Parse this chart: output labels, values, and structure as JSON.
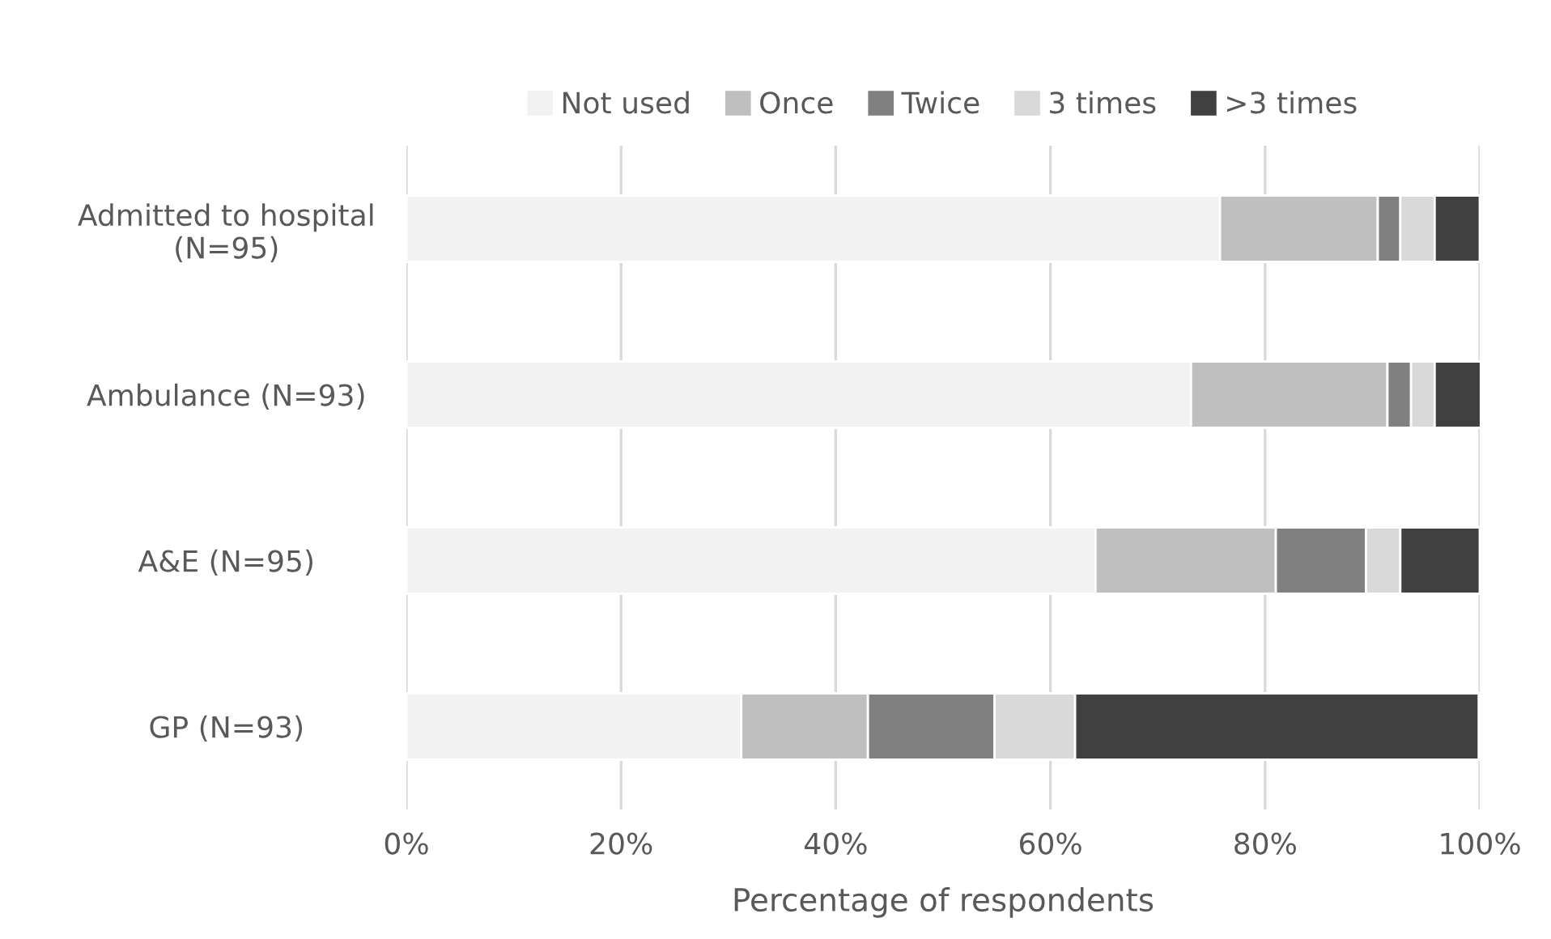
{
  "chart_data": {
    "type": "bar",
    "orientation": "horizontal",
    "stacked": true,
    "categories": [
      "Admitted to hospital\n(N=95)",
      "Ambulance (N=93)",
      "A&E (N=95)",
      "GP (N=93)"
    ],
    "series": [
      {
        "name": "Not used",
        "color": "#f2f2f2",
        "values": [
          75.8,
          73.1,
          64.2,
          31.2
        ]
      },
      {
        "name": "Once",
        "color": "#bfbfbf",
        "values": [
          14.7,
          18.3,
          16.8,
          11.8
        ]
      },
      {
        "name": "Twice",
        "color": "#808080",
        "values": [
          2.1,
          2.2,
          8.4,
          11.8
        ]
      },
      {
        "name": "3 times",
        "color": "#d9d9d9",
        "values": [
          3.2,
          2.2,
          3.2,
          7.5
        ]
      },
      {
        "name": ">3 times",
        "color": "#404040",
        "values": [
          4.2,
          4.3,
          7.4,
          37.6
        ]
      }
    ],
    "xlabel": "Percentage of respondents",
    "xlim": [
      0,
      100
    ],
    "xticks": [
      {
        "value": 0,
        "label": "0%"
      },
      {
        "value": 20,
        "label": "20%"
      },
      {
        "value": 40,
        "label": "40%"
      },
      {
        "value": 60,
        "label": "60%"
      },
      {
        "value": 80,
        "label": "80%"
      },
      {
        "value": 100,
        "label": "100%"
      }
    ],
    "grid": "x",
    "legend": "top"
  }
}
